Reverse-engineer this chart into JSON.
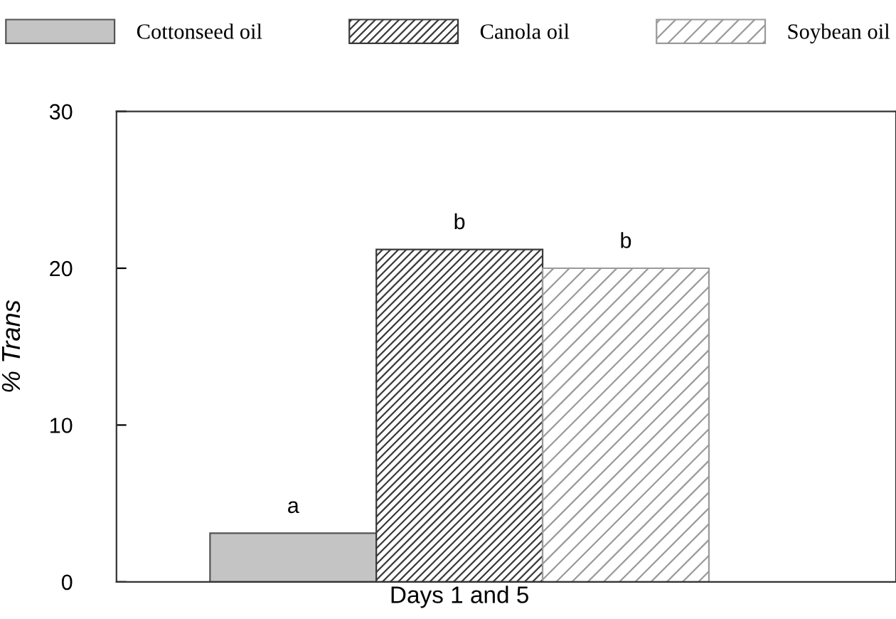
{
  "chart_data": {
    "type": "bar",
    "ylabel": "% Trans",
    "categories": [
      "Days 1 and 5"
    ],
    "series": [
      {
        "name": "Cottonseed oil",
        "color": "#c4c4c4",
        "values": [
          3.1
        ],
        "value_labels": [
          "a"
        ]
      },
      {
        "name": "Canola oil",
        "color": "#3a3a3a",
        "values": [
          21.2
        ],
        "value_labels": [
          "b"
        ]
      },
      {
        "name": "Soybean oil",
        "color": "#9a9a9a",
        "values": [
          20.0
        ],
        "value_labels": [
          "b"
        ]
      }
    ],
    "ylim": [
      0,
      30
    ],
    "yticks": [
      0,
      10,
      20,
      30
    ],
    "grid": false,
    "legend": "top"
  }
}
